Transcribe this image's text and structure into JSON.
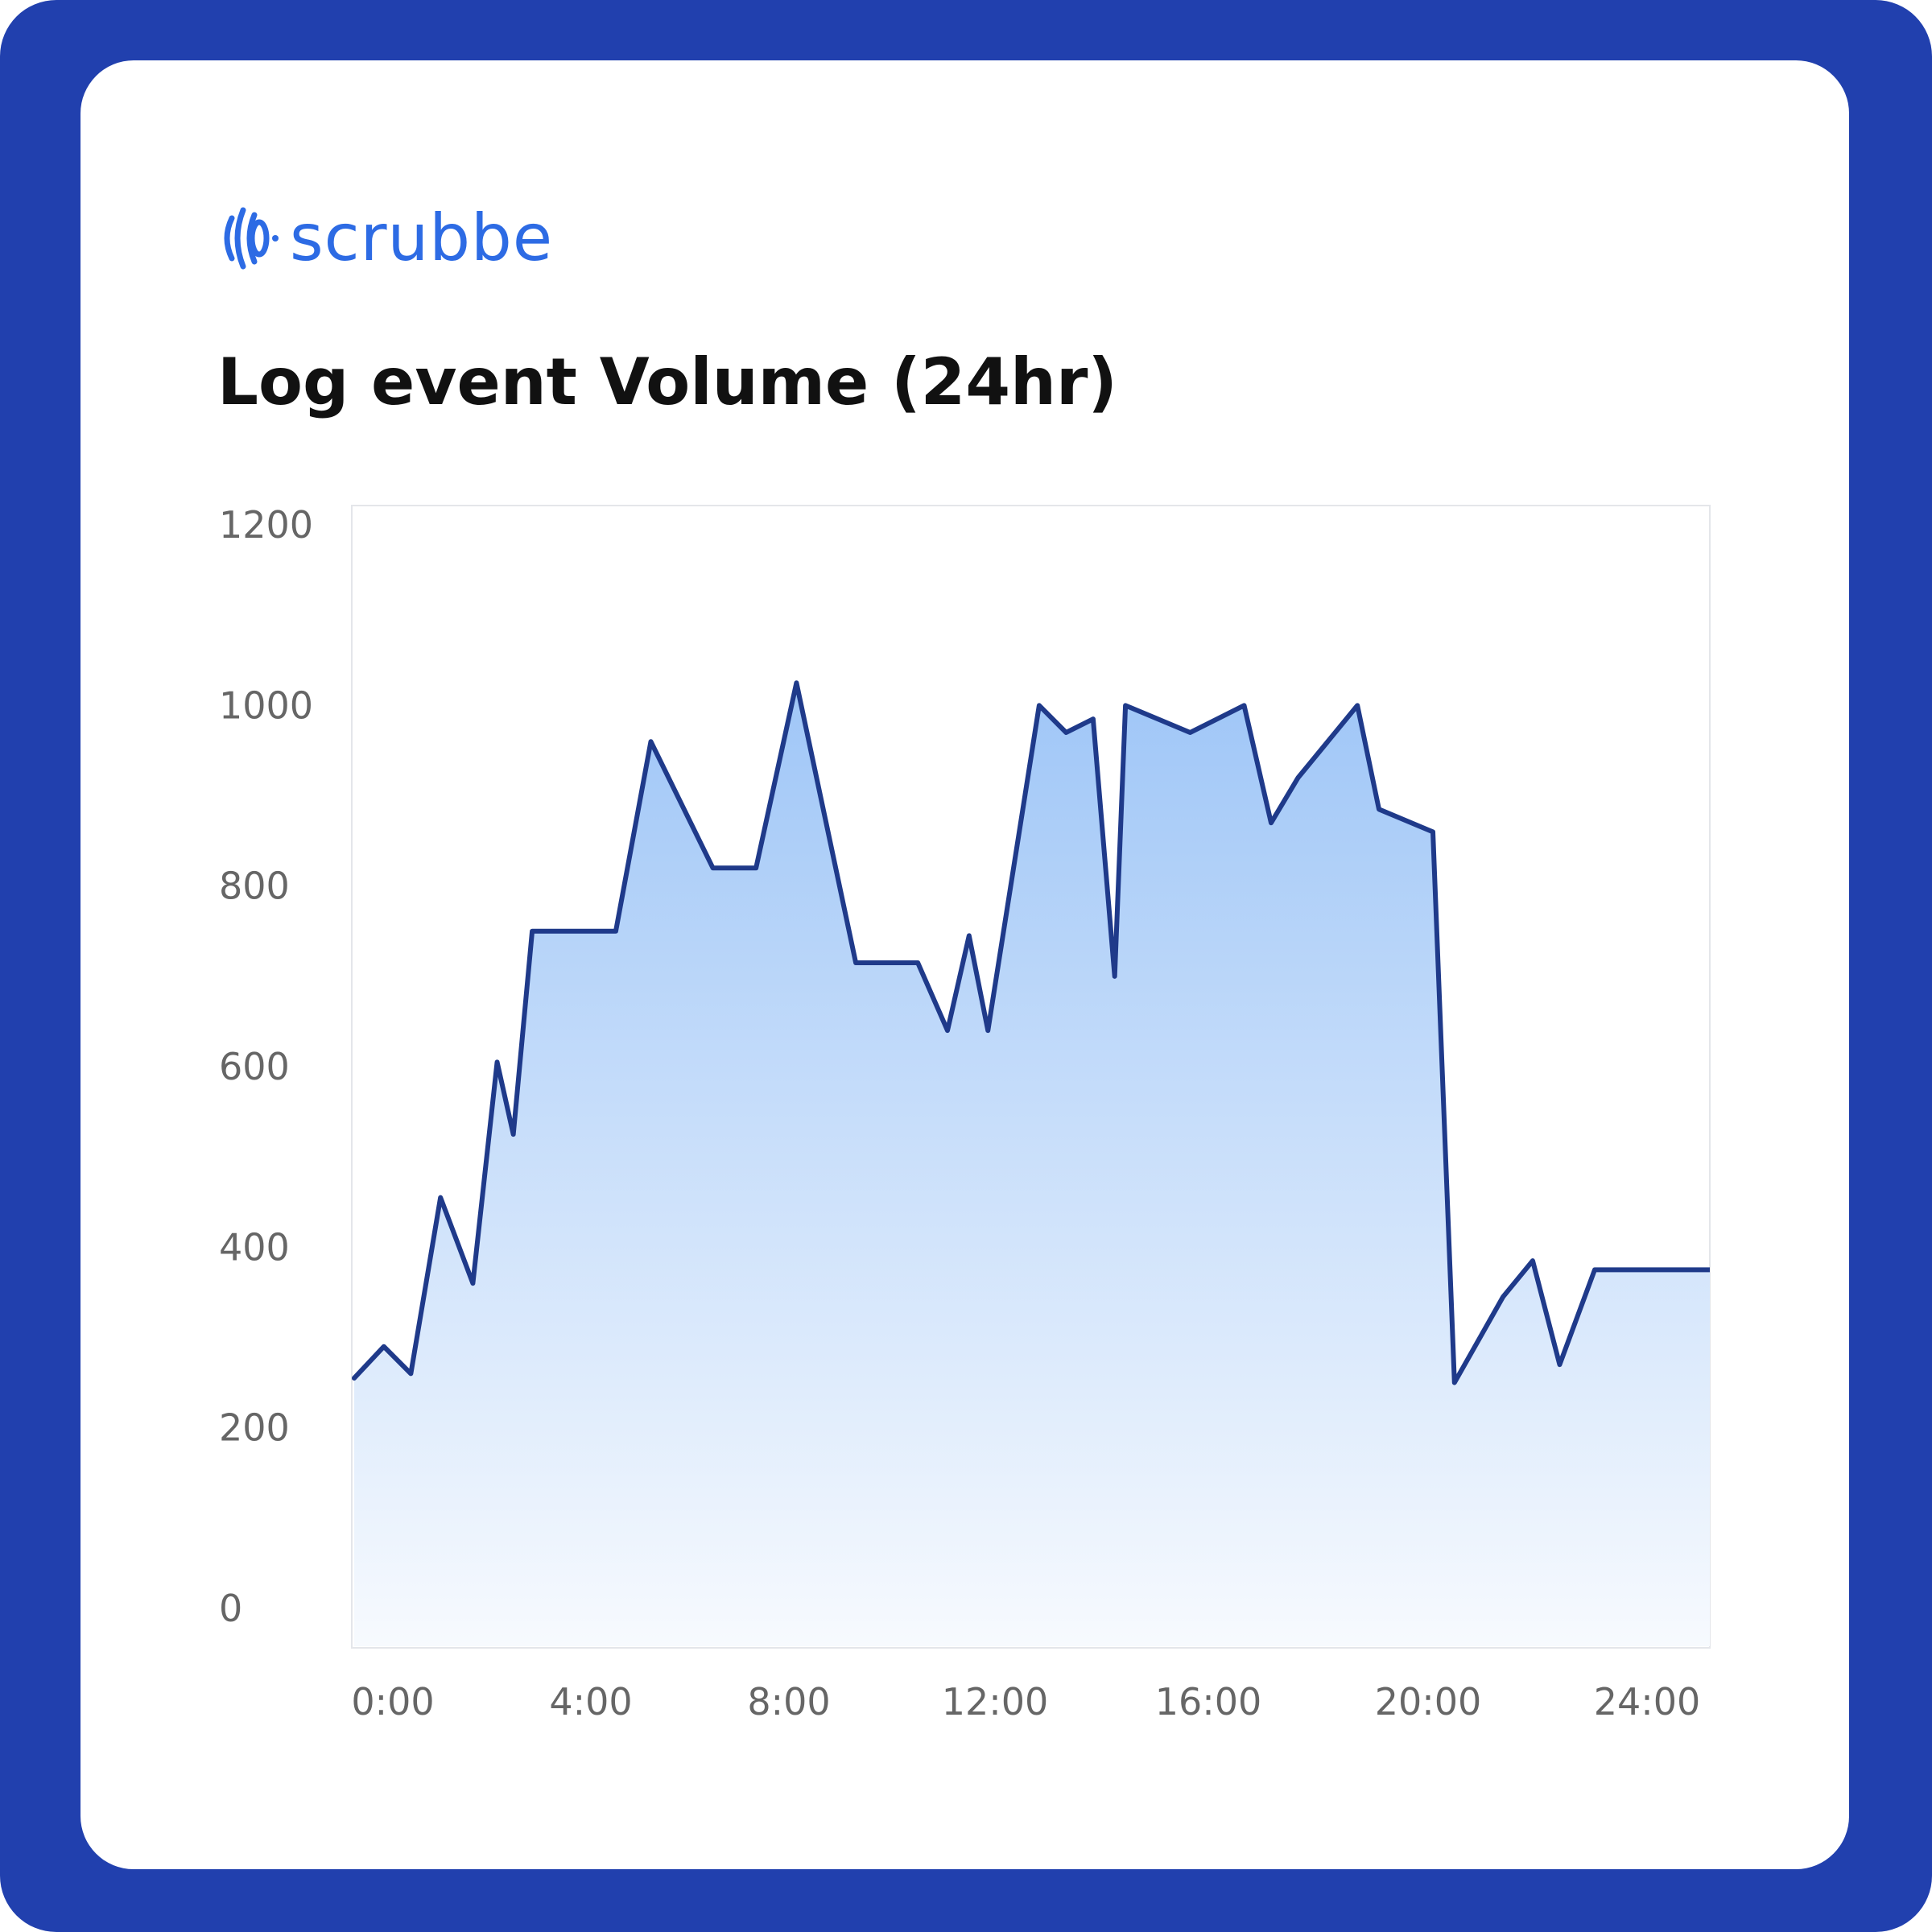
{
  "brand": {
    "name": "scrubbe",
    "icon": "scrubbe-logo-icon",
    "color": "#2d6be4"
  },
  "frame_color": "#2140ae",
  "chart_data": {
    "type": "area",
    "title": "Log event Volume (24hr)",
    "xlabel": "",
    "ylabel": "",
    "xlim": [
      0,
      24.7
    ],
    "ylim": [
      0,
      1200
    ],
    "x_ticks": [
      0,
      4,
      8,
      12,
      16,
      20,
      24
    ],
    "x_tick_labels": [
      "0:00",
      "4:00",
      "8:00",
      "12:00",
      "16:00",
      "20:00",
      "24:00"
    ],
    "y_ticks": [
      0,
      200,
      400,
      600,
      800,
      1000,
      1200
    ],
    "y_tick_labels": [
      "0",
      "200",
      "400",
      "600",
      "800",
      "1000",
      "1200"
    ],
    "grid": false,
    "line_color": "#1f3a8a",
    "fill_color_top": "#9fc6f7",
    "fill_color_bottom": "#f7fafe",
    "series": [
      {
        "x": [
          0,
          0.55,
          1.05,
          1.6,
          2.2,
          2.65,
          2.95,
          3.3,
          4.85,
          5.5,
          6.65,
          7.45,
          8.2,
          9.3,
          10.45,
          11.0,
          11.4,
          11.75,
          12.7,
          13.2,
          13.7,
          14.1,
          14.3,
          15.5,
          16.5,
          17.0,
          17.5,
          18.6,
          19.0,
          20.0,
          20.4,
          21.3,
          21.85,
          22.35,
          23.0,
          23.7,
          24.95,
          25.2
        ],
        "y": [
          255,
          290,
          260,
          455,
          360,
          605,
          525,
          750,
          750,
          960,
          820,
          820,
          1025,
          715,
          715,
          640,
          745,
          640,
          1000,
          970,
          985,
          700,
          1000,
          970,
          1000,
          870,
          920,
          1000,
          885,
          860,
          250,
          345,
          385,
          270,
          375,
          375,
          375,
          375
        ]
      }
    ]
  }
}
